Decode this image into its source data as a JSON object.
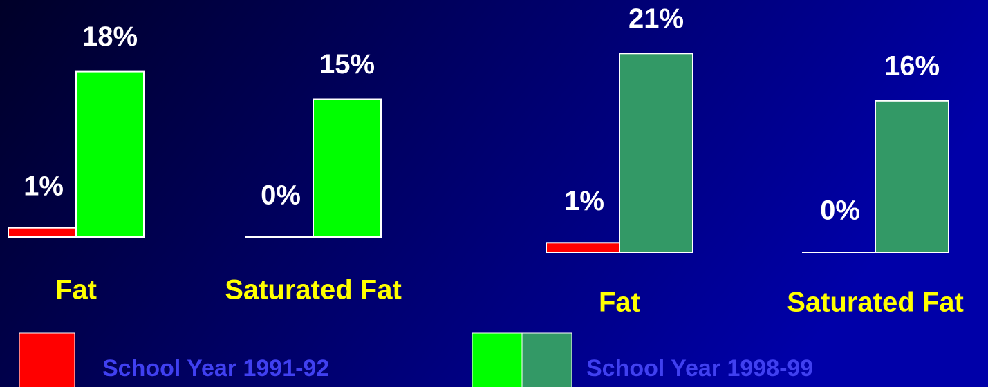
{
  "chart_data": [
    {
      "type": "bar",
      "categories": [
        "Fat",
        "Saturated Fat"
      ],
      "series": [
        {
          "color": "#ff0000",
          "values": [
            1,
            0
          ],
          "value_labels": [
            "1%",
            "0%"
          ]
        },
        {
          "color": "#00ff00",
          "values": [
            18,
            15
          ],
          "value_labels": [
            "18%",
            "15%"
          ]
        }
      ]
    },
    {
      "type": "bar",
      "categories": [
        "Fat",
        "Saturated Fat"
      ],
      "series": [
        {
          "color": "#ff0000",
          "values": [
            1,
            0
          ],
          "value_labels": [
            "1%",
            "0%"
          ]
        },
        {
          "color": "#339966",
          "values": [
            21,
            16
          ],
          "value_labels": [
            "21%",
            "16%"
          ]
        }
      ]
    }
  ],
  "legend": [
    {
      "label": "School Year 1991-92",
      "colors": [
        "#ff0000"
      ]
    },
    {
      "label": "School Year 1998-99",
      "colors": [
        "#00ff00",
        "#339966"
      ]
    }
  ]
}
